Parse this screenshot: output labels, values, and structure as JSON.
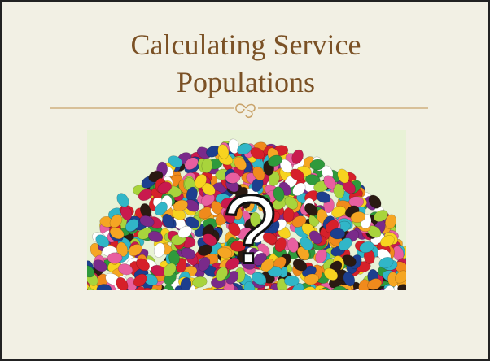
{
  "slide": {
    "title": "Calculating Service Populations",
    "image_overlay": "?"
  }
}
